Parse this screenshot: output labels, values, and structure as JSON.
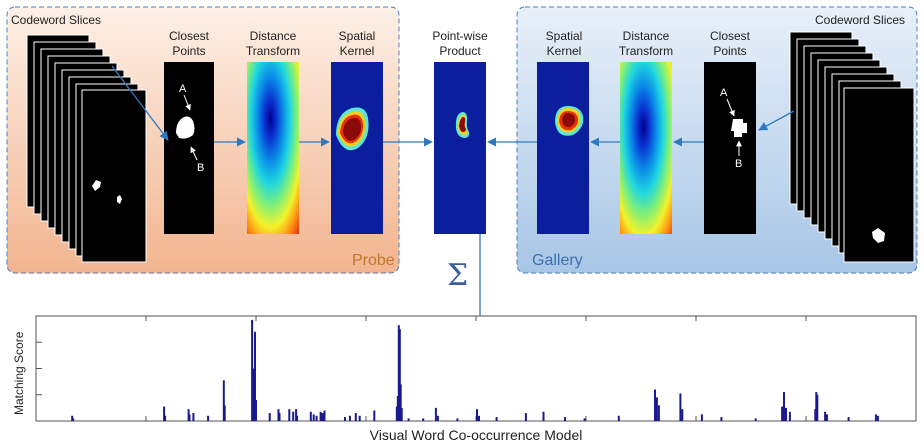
{
  "probe": {
    "title": "Codeword Slices",
    "panel_label": "Probe",
    "stage_labels": {
      "closest_points": [
        "Closest",
        "Points"
      ],
      "distance_transform": [
        "Distance",
        "Transform"
      ],
      "spatial_kernel": [
        "Spatial",
        "Kernel"
      ]
    },
    "point_a": "A",
    "point_b": "B"
  },
  "product": {
    "label": [
      "Point-wise",
      "Product"
    ],
    "sum_symbol": "Σ"
  },
  "gallery": {
    "title": "Codeword Slices",
    "panel_label": "Gallery",
    "stage_labels": {
      "spatial_kernel": [
        "Spatial",
        "Kernel"
      ],
      "distance_transform": [
        "Distance",
        "Transform"
      ],
      "closest_points": [
        "Closest",
        "Points"
      ]
    },
    "point_a": "A",
    "point_b": "B"
  },
  "colors": {
    "probe_bg_top": "#fbe9dd",
    "probe_bg_bottom": "#f2b48f",
    "gallery_bg_top": "#e3edf8",
    "gallery_bg_bottom": "#a7c6e6",
    "probe_text": "#c0782f",
    "gallery_text": "#3f6fa8",
    "arrow": "#2f79c0",
    "bar": "#1a1a8c"
  },
  "chart_data": {
    "type": "bar",
    "xlabel": "Visual Word Co-occurrence Model",
    "ylabel": "Matching Score",
    "ylim": [
      0,
      4
    ],
    "n": 900,
    "bars": [
      [
        36,
        0.2
      ],
      [
        37,
        0.1
      ],
      [
        130,
        0.55
      ],
      [
        131,
        0.2
      ],
      [
        155,
        0.45
      ],
      [
        156,
        0.25
      ],
      [
        160,
        0.3
      ],
      [
        175,
        0.2
      ],
      [
        191,
        1.55
      ],
      [
        192,
        0.6
      ],
      [
        220,
        3.85
      ],
      [
        221,
        2.0
      ],
      [
        223,
        3.4
      ],
      [
        224,
        0.8
      ],
      [
        238,
        0.3
      ],
      [
        247,
        0.45
      ],
      [
        248,
        0.3
      ],
      [
        258,
        0.45
      ],
      [
        262,
        0.35
      ],
      [
        265,
        0.45
      ],
      [
        266,
        0.2
      ],
      [
        280,
        0.35
      ],
      [
        283,
        0.25
      ],
      [
        286,
        0.2
      ],
      [
        290,
        0.35
      ],
      [
        292,
        0.3
      ],
      [
        294,
        0.4
      ],
      [
        315,
        0.15
      ],
      [
        320,
        0.2
      ],
      [
        326,
        0.3
      ],
      [
        330,
        0.2
      ],
      [
        345,
        0.4
      ],
      [
        368,
        0.55
      ],
      [
        369,
        0.95
      ],
      [
        370,
        3.65
      ],
      [
        371,
        3.5
      ],
      [
        372,
        1.4
      ],
      [
        373,
        0.5
      ],
      [
        380,
        0.1
      ],
      [
        395,
        0.1
      ],
      [
        408,
        0.5
      ],
      [
        410,
        0.2
      ],
      [
        430,
        0.1
      ],
      [
        450,
        0.45
      ],
      [
        452,
        0.2
      ],
      [
        470,
        0.15
      ],
      [
        500,
        0.3
      ],
      [
        518,
        0.35
      ],
      [
        540,
        0.15
      ],
      [
        560,
        0.1
      ],
      [
        595,
        0.2
      ],
      [
        632,
        1.2
      ],
      [
        634,
        0.9
      ],
      [
        636,
        0.6
      ],
      [
        658,
        1.05
      ],
      [
        660,
        0.45
      ],
      [
        680,
        0.25
      ],
      [
        700,
        0.15
      ],
      [
        735,
        0.1
      ],
      [
        762,
        0.55
      ],
      [
        764,
        1.1
      ],
      [
        766,
        0.5
      ],
      [
        770,
        0.35
      ],
      [
        796,
        0.45
      ],
      [
        797,
        1.1
      ],
      [
        798,
        1.0
      ],
      [
        806,
        0.35
      ],
      [
        808,
        0.25
      ],
      [
        830,
        0.15
      ],
      [
        858,
        0.25
      ],
      [
        860,
        0.2
      ]
    ]
  }
}
